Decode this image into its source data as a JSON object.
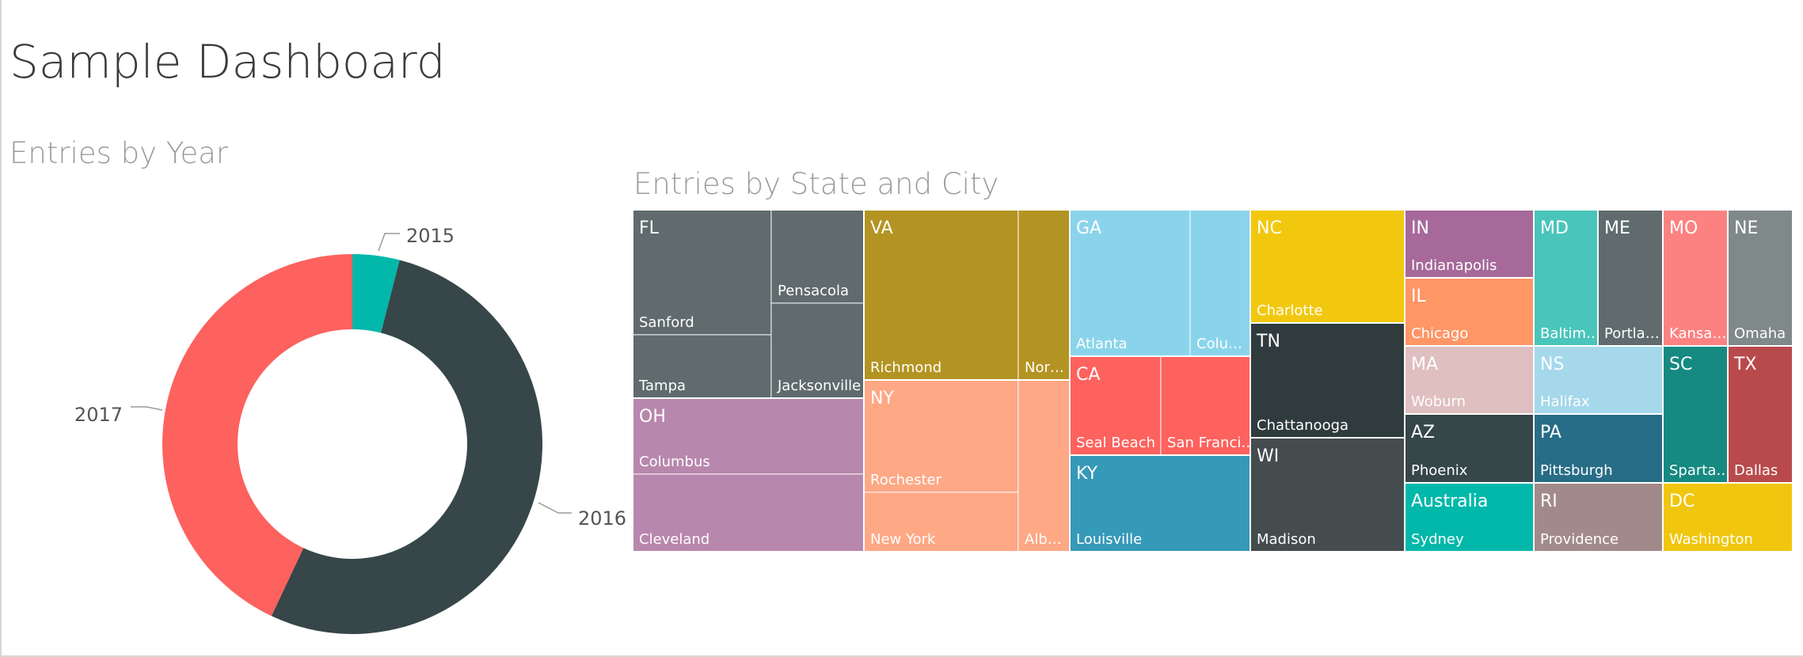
{
  "page": {
    "title": "Sample Dashboard"
  },
  "chart_data": [
    {
      "type": "pie",
      "title": "Entries by Year",
      "categories": [
        "2015",
        "2016",
        "2017"
      ],
      "values": [
        4,
        53,
        43
      ],
      "colors": [
        "#01b8aa",
        "#374649",
        "#fd625e"
      ],
      "legend": "none",
      "data_labels": "category"
    },
    {
      "type": "treemap",
      "title": "Entries by State and City",
      "groups": [
        {
          "state": "FL",
          "color": "#5f6b6d",
          "value": 12,
          "cities": [
            {
              "name": "Sanford",
              "value": 4
            },
            {
              "name": "Tampa",
              "value": 2
            },
            {
              "name": "Pensacola",
              "value": 3
            },
            {
              "name": "Jacksonville",
              "value": 3
            }
          ]
        },
        {
          "state": "OH",
          "color": "#b887ad",
          "value": 8,
          "cities": [
            {
              "name": "Columbus",
              "value": 4
            },
            {
              "name": "Cleveland",
              "value": 4
            }
          ]
        },
        {
          "state": "VA",
          "color": "#b39423",
          "value": 10,
          "cities": [
            {
              "name": "Richmond",
              "value": 7
            },
            {
              "name": "Nor…",
              "value": 3
            }
          ]
        },
        {
          "state": "NY",
          "color": "#fea885",
          "value": 9,
          "cities": [
            {
              "name": "Rochester",
              "value": 5
            },
            {
              "name": "New York",
              "value": 2
            },
            {
              "name": "Alb…",
              "value": 2
            }
          ]
        },
        {
          "state": "GA",
          "color": "#8ad4eb",
          "value": 8,
          "cities": [
            {
              "name": "Atlanta",
              "value": 5
            },
            {
              "name": "Colu…",
              "value": 3
            }
          ]
        },
        {
          "state": "CA",
          "color": "#fd625e",
          "value": 6,
          "cities": [
            {
              "name": "Seal Beach",
              "value": 3
            },
            {
              "name": "San Franci…",
              "value": 3
            }
          ]
        },
        {
          "state": "KY",
          "color": "#3599b8",
          "value": 5,
          "cities": [
            {
              "name": "Louisville",
              "value": 5
            }
          ]
        },
        {
          "state": "NC",
          "color": "#f2c80f",
          "value": 6,
          "cities": [
            {
              "name": "Charlotte",
              "value": 6
            }
          ]
        },
        {
          "state": "TN",
          "color": "#2f3b3d",
          "value": 5,
          "cities": [
            {
              "name": "Chattanooga",
              "value": 5
            }
          ]
        },
        {
          "state": "WI",
          "color": "#444c4e",
          "value": 5,
          "cities": [
            {
              "name": "Madison",
              "value": 5
            }
          ]
        },
        {
          "state": "IN",
          "color": "#a66999",
          "value": 3,
          "cities": [
            {
              "name": "Indianapolis",
              "value": 3
            }
          ]
        },
        {
          "state": "IL",
          "color": "#fe9666",
          "value": 3,
          "cities": [
            {
              "name": "Chicago",
              "value": 3
            }
          ]
        },
        {
          "state": "MA",
          "color": "#dfbfbf",
          "value": 3,
          "cities": [
            {
              "name": "Woburn",
              "value": 3
            }
          ]
        },
        {
          "state": "AZ",
          "color": "#374649",
          "value": 3,
          "cities": [
            {
              "name": "Phoenix",
              "value": 3
            }
          ]
        },
        {
          "state": "Australia",
          "color": "#01b8aa",
          "value": 3,
          "cities": [
            {
              "name": "Sydney",
              "value": 3
            }
          ]
        },
        {
          "state": "MD",
          "color": "#4ac5bb",
          "value": 3,
          "cities": [
            {
              "name": "Baltim…",
              "value": 3
            }
          ]
        },
        {
          "state": "ME",
          "color": "#5f6b6d",
          "value": 3,
          "cities": [
            {
              "name": "Portla…",
              "value": 3
            }
          ]
        },
        {
          "state": "NS",
          "color": "#a5d8eb",
          "value": 2,
          "cities": [
            {
              "name": "Halifax",
              "value": 2
            }
          ]
        },
        {
          "state": "PA",
          "color": "#286d87",
          "value": 2,
          "cities": [
            {
              "name": "Pittsburgh",
              "value": 2
            }
          ]
        },
        {
          "state": "RI",
          "color": "#a38a8a",
          "value": 2,
          "cities": [
            {
              "name": "Providence",
              "value": 2
            }
          ]
        },
        {
          "state": "MO",
          "color": "#fb8281",
          "value": 3,
          "cities": [
            {
              "name": "Kansa…",
              "value": 3
            }
          ]
        },
        {
          "state": "NE",
          "color": "#7f898a",
          "value": 3,
          "cities": [
            {
              "name": "Omaha",
              "value": 3
            }
          ]
        },
        {
          "state": "SC",
          "color": "#168980",
          "value": 3,
          "cities": [
            {
              "name": "Sparta…",
              "value": 3
            }
          ]
        },
        {
          "state": "TX",
          "color": "#b84a4c",
          "value": 3,
          "cities": [
            {
              "name": "Dallas",
              "value": 3
            }
          ]
        },
        {
          "state": "DC",
          "color": "#f0c60e",
          "value": 2,
          "cities": [
            {
              "name": "Washington",
              "value": 2
            }
          ]
        }
      ]
    }
  ]
}
